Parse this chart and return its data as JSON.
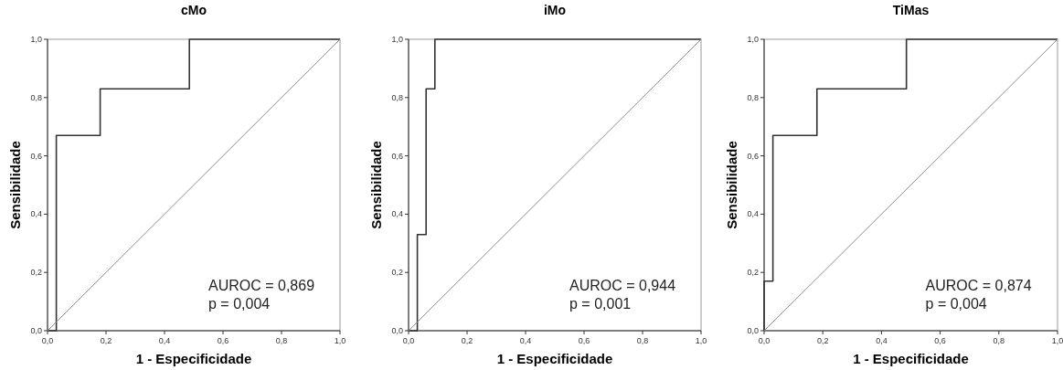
{
  "chart_data": [
    {
      "type": "step",
      "title": "cMo",
      "xlabel": "1 - Especificidade",
      "ylabel": "Sensibilidade",
      "xlim": [
        0,
        1
      ],
      "ylim": [
        0,
        1
      ],
      "xticks": [
        {
          "value": 0,
          "label": "0,0"
        },
        {
          "value": 0.2,
          "label": "0,2"
        },
        {
          "value": 0.4,
          "label": "0,4"
        },
        {
          "value": 0.6,
          "label": "0,6"
        },
        {
          "value": 0.8,
          "label": "0,8"
        },
        {
          "value": 1,
          "label": "1,0"
        }
      ],
      "yticks": [
        {
          "value": 0,
          "label": "0,0"
        },
        {
          "value": 0.2,
          "label": "0,2"
        },
        {
          "value": 0.4,
          "label": "0,4"
        },
        {
          "value": 0.6,
          "label": "0,6"
        },
        {
          "value": 0.8,
          "label": "0,8"
        },
        {
          "value": 1,
          "label": "1,0"
        }
      ],
      "series": [
        {
          "color": "#333333",
          "x": [
            0,
            0.03,
            0.18,
            0.485,
            1
          ],
          "values": [
            0,
            0.67,
            0.83,
            1,
            1
          ]
        },
        {
          "type": "line",
          "color": "#8c8c8c",
          "x": [
            0,
            1
          ],
          "values": [
            0,
            1
          ]
        }
      ],
      "annotations": [
        "AUROC = 0,869",
        "p = 0,004"
      ],
      "grid": false
    },
    {
      "type": "step",
      "title": "iMo",
      "xlabel": "1 - Especificidade",
      "ylabel": "Sensibilidade",
      "xlim": [
        0,
        1
      ],
      "ylim": [
        0,
        1
      ],
      "xticks": [
        {
          "value": 0,
          "label": "0,0"
        },
        {
          "value": 0.2,
          "label": "0,2"
        },
        {
          "value": 0.4,
          "label": "0,4"
        },
        {
          "value": 0.6,
          "label": "0,6"
        },
        {
          "value": 0.8,
          "label": "0,8"
        },
        {
          "value": 1,
          "label": "1,0"
        }
      ],
      "yticks": [
        {
          "value": 0,
          "label": "0,0"
        },
        {
          "value": 0.2,
          "label": "0,2"
        },
        {
          "value": 0.4,
          "label": "0,4"
        },
        {
          "value": 0.6,
          "label": "0,6"
        },
        {
          "value": 0.8,
          "label": "0,8"
        },
        {
          "value": 1,
          "label": "1,0"
        }
      ],
      "series": [
        {
          "color": "#333333",
          "x": [
            0,
            0.03,
            0.06,
            0.09,
            1
          ],
          "values": [
            0,
            0.33,
            0.83,
            1,
            1
          ]
        },
        {
          "type": "line",
          "color": "#8c8c8c",
          "x": [
            0,
            1
          ],
          "values": [
            0,
            1
          ]
        }
      ],
      "annotations": [
        "AUROC = 0,944",
        "p = 0,001"
      ],
      "grid": false
    },
    {
      "type": "step",
      "title": "TiMas",
      "xlabel": "1 - Especificidade",
      "ylabel": "Sensibilidade",
      "xlim": [
        0,
        1
      ],
      "ylim": [
        0,
        1
      ],
      "xticks": [
        {
          "value": 0,
          "label": "0,0"
        },
        {
          "value": 0.2,
          "label": "0,2"
        },
        {
          "value": 0.4,
          "label": "0,4"
        },
        {
          "value": 0.6,
          "label": "0,6"
        },
        {
          "value": 0.8,
          "label": "0,8"
        },
        {
          "value": 1,
          "label": "1,0"
        }
      ],
      "yticks": [
        {
          "value": 0,
          "label": "0,0"
        },
        {
          "value": 0.2,
          "label": "0,2"
        },
        {
          "value": 0.4,
          "label": "0,4"
        },
        {
          "value": 0.6,
          "label": "0,6"
        },
        {
          "value": 0.8,
          "label": "0,8"
        },
        {
          "value": 1,
          "label": "1,0"
        }
      ],
      "series": [
        {
          "color": "#333333",
          "x": [
            0,
            0,
            0.03,
            0.18,
            0.485,
            1
          ],
          "values": [
            0,
            0.17,
            0.67,
            0.83,
            1,
            1
          ]
        },
        {
          "type": "line",
          "color": "#8c8c8c",
          "x": [
            0,
            1
          ],
          "values": [
            0,
            1
          ]
        }
      ],
      "annotations": [
        "AUROC = 0,874",
        "p = 0,004"
      ],
      "grid": false
    }
  ]
}
